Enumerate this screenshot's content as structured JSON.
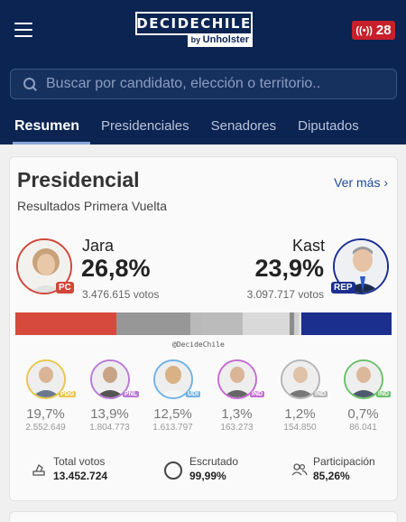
{
  "header": {
    "logo_main": "DECIDECHILE",
    "logo_by": "by",
    "logo_brand": "Unholster",
    "live_count": "28",
    "search_placeholder": "Buscar por candidato, elección o territorio..",
    "tabs": [
      {
        "label": "Resumen",
        "active": true
      },
      {
        "label": "Presidenciales",
        "active": false
      },
      {
        "label": "Senadores",
        "active": false
      },
      {
        "label": "Diputados",
        "active": false
      }
    ]
  },
  "card": {
    "title": "Presidencial",
    "ver_mas": "Ver más ›",
    "subtitle": "Resultados Primera Vuelta",
    "leader_left": {
      "name": "Jara",
      "pct": "26,8%",
      "votes": "3.476.615 votos",
      "party": "PC",
      "color": "#d0463a"
    },
    "leader_right": {
      "name": "Kast",
      "pct": "23,9%",
      "votes": "3.097.717 votos",
      "party": "REP",
      "color": "#1b2f8f"
    },
    "bar_segments": [
      {
        "value": 26.8,
        "color": "#d54a3c"
      },
      {
        "value": 19.7,
        "color": "#979797"
      },
      {
        "value": 3.5,
        "color": "#b9b9b9"
      },
      {
        "value": 10.4,
        "color": "#bbbbbb"
      },
      {
        "value": 12.5,
        "color": "#d9d9d9"
      },
      {
        "value": 1.3,
        "color": "#8c8c8c"
      },
      {
        "value": 1.2,
        "color": "#cfcfcf"
      },
      {
        "value": 0.7,
        "color": "#e0e0e0"
      },
      {
        "value": 23.9,
        "color": "#1b2f8f"
      }
    ],
    "watermark": "@DecideChile",
    "others": [
      {
        "pct": "19,7%",
        "votes": "2.552.649",
        "party": "PDG",
        "color": "#e8c64a"
      },
      {
        "pct": "13,9%",
        "votes": "1.804.773",
        "party": "PNL",
        "color": "#b97ad6"
      },
      {
        "pct": "12,5%",
        "votes": "1.613.797",
        "party": "UDI",
        "color": "#6fb2e6"
      },
      {
        "pct": "1,3%",
        "votes": "163.273",
        "party": "IND",
        "color": "#c66bd3"
      },
      {
        "pct": "1,2%",
        "votes": "154.850",
        "party": "IND",
        "color": "#b5b5b5"
      },
      {
        "pct": "0,7%",
        "votes": "86.041",
        "party": "IND",
        "color": "#6cbf6c"
      }
    ],
    "stats": {
      "total_label": "Total votos",
      "total_value": "13.452.724",
      "escrutado_label": "Escrutado",
      "escrutado_value": "99,99%",
      "participacion_label": "Participación",
      "participacion_value": "85,26%"
    }
  }
}
